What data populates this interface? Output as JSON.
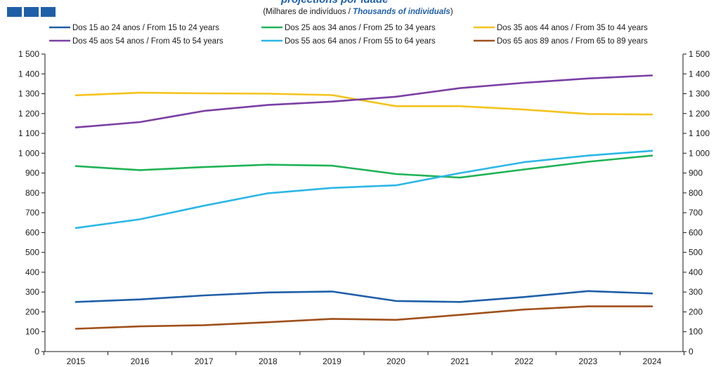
{
  "header": {
    "title_partial": "projections por idade",
    "subtitle_plain": "(Milhares de indivíduos / ",
    "subtitle_italic": "Thousands of individuals",
    "subtitle_close": ")"
  },
  "chart_data": {
    "type": "line",
    "x": [
      "2015",
      "2016",
      "2017",
      "2018",
      "2019",
      "2020",
      "2021",
      "2022",
      "2023",
      "2024"
    ],
    "ylim": [
      0,
      1500
    ],
    "yticks": [
      0,
      100,
      200,
      300,
      400,
      500,
      600,
      700,
      800,
      900,
      1000,
      1100,
      1200,
      1300,
      1400,
      1500
    ],
    "ytick_labels": [
      "0",
      "100",
      "200",
      "300",
      "400",
      "500",
      "600",
      "700",
      "800",
      "900",
      "1 000",
      "1 100",
      "1 200",
      "1 300",
      "1 400",
      "1 500"
    ],
    "grid": false,
    "legend_position": "top",
    "series": [
      {
        "name": "Dos 15 ao 24 anos / From 15 to 24 years",
        "color": "#1f5fa8",
        "values": [
          250,
          263,
          283,
          298,
          303,
          255,
          250,
          275,
          305,
          293
        ]
      },
      {
        "name": "Dos 25 aos 34 anos / From 25 to 34 years",
        "color": "#1fb356",
        "values": [
          935,
          915,
          930,
          942,
          937,
          895,
          877,
          918,
          957,
          988
        ]
      },
      {
        "name": "Dos 35 aos 44 anos / From 35 to 44 years",
        "color": "#f5c31c",
        "values": [
          1292,
          1305,
          1302,
          1300,
          1293,
          1237,
          1237,
          1220,
          1198,
          1195
        ]
      },
      {
        "name": "Dos 45 aos 54 anos / From 45 to 54 years",
        "color": "#7b3fa5",
        "values": [
          1130,
          1157,
          1213,
          1243,
          1260,
          1285,
          1328,
          1355,
          1377,
          1392
        ]
      },
      {
        "name": "Dos 55 aos 64 anos / From 55 to 64 years",
        "color": "#2bb7e6",
        "values": [
          623,
          667,
          735,
          798,
          825,
          838,
          900,
          955,
          988,
          1012
        ]
      },
      {
        "name": "Dos 65 aos 89 anos / From 65 to 89 years",
        "color": "#a0501b",
        "values": [
          115,
          127,
          133,
          148,
          165,
          160,
          185,
          212,
          228,
          228
        ]
      }
    ]
  }
}
